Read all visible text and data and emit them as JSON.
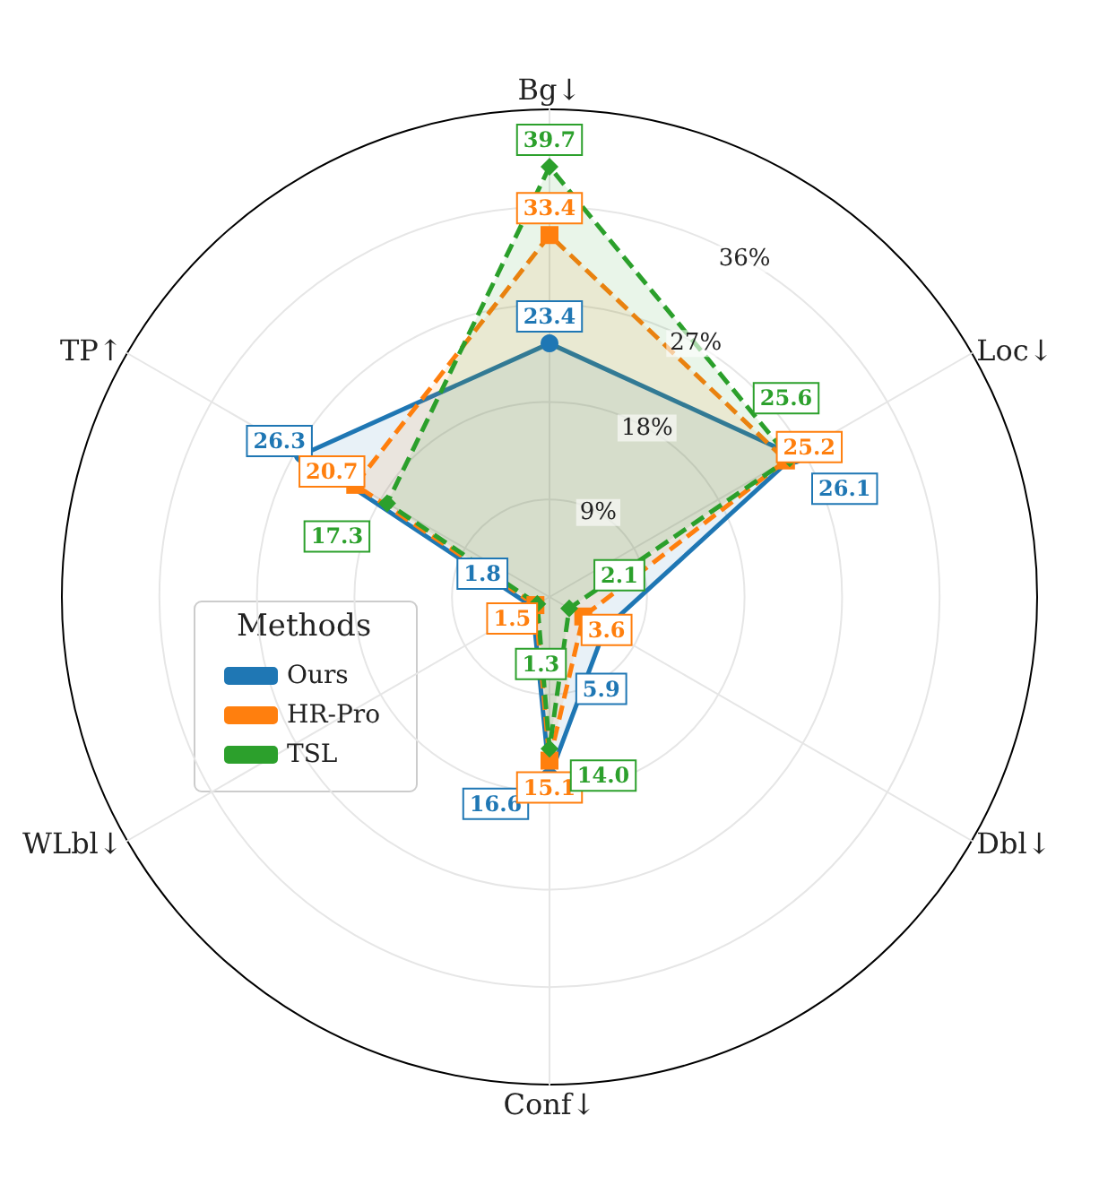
{
  "chart_data": {
    "type": "radar",
    "categories": [
      "Bg↓",
      "Loc↓",
      "Dbl↓",
      "Conf↓",
      "WLbl↓",
      "TP↑"
    ],
    "legend_title": "Methods",
    "legend": "left",
    "ylim": [
      0,
      45
    ],
    "yticks": [
      {
        "value": 9,
        "label": "9%"
      },
      {
        "value": 18,
        "label": "18%"
      },
      {
        "value": 27,
        "label": "27%"
      },
      {
        "value": 36,
        "label": "36%"
      }
    ],
    "grid": true,
    "series": [
      {
        "name": "Ours",
        "color": "#1f77b4",
        "marker": "circle",
        "line_style": "solid",
        "values": [
          23.4,
          26.1,
          5.9,
          16.6,
          1.8,
          26.3
        ],
        "value_labels": [
          "23.4",
          "26.1",
          "5.9",
          "16.6",
          "1.8",
          "26.3"
        ]
      },
      {
        "name": "HR-Pro",
        "color": "#ff7f0e",
        "marker": "square",
        "line_style": "dashed",
        "values": [
          33.4,
          25.2,
          3.6,
          15.1,
          1.5,
          20.7
        ],
        "value_labels": [
          "33.4",
          "25.2",
          "3.6",
          "15.1",
          "1.5",
          "20.7"
        ]
      },
      {
        "name": "TSL",
        "color": "#2ca02c",
        "marker": "diamond",
        "line_style": "dashed",
        "values": [
          39.7,
          25.6,
          2.1,
          14.0,
          1.3,
          17.3
        ],
        "value_labels": [
          "39.7",
          "25.6",
          "2.1",
          "14.0",
          "1.3",
          "17.3"
        ]
      }
    ]
  }
}
